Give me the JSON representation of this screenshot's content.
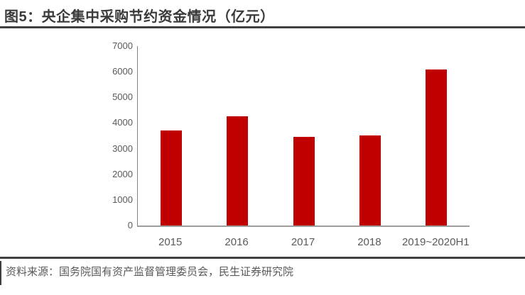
{
  "page": {
    "title": "图5：央企集中采购节约资金情况（亿元）",
    "source": "资料来源：国务院国有资产监督管理委员会，民生证券研究院"
  },
  "colors": {
    "bar": "#c00000",
    "title_text": "#3a3a3a",
    "divider": "#404040",
    "axis_line": "#808080",
    "axis_label": "#595959",
    "source_text": "#595959"
  },
  "chart_data": {
    "type": "bar",
    "title": "央企集中采购节约资金情况",
    "unit": "亿元",
    "categories": [
      "2015",
      "2016",
      "2017",
      "2018",
      "2019~2020H1"
    ],
    "values": [
      3700,
      4270,
      3450,
      3500,
      6080
    ],
    "ylim": [
      0,
      7000
    ],
    "yticks": [
      0,
      1000,
      2000,
      3000,
      4000,
      5000,
      6000,
      7000
    ],
    "grid": false,
    "legend": false,
    "bar_color": "#c00000"
  }
}
